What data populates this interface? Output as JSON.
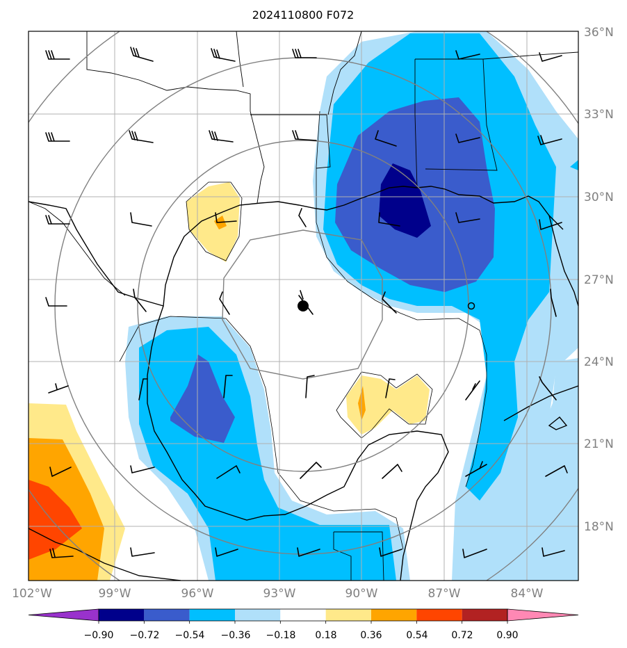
{
  "map": {
    "title": "2024110800 F072",
    "lat_labels": [
      "36°N",
      "33°N",
      "30°N",
      "27°N",
      "24°N",
      "21°N",
      "18°N"
    ],
    "lon_labels": [
      "102°W",
      "99°W",
      "96°W",
      "93°W",
      "90°W",
      "87°W",
      "84°W"
    ],
    "extent": {
      "lon_min": -102,
      "lon_max": -82,
      "lat_min": 16,
      "lat_max": 36
    },
    "storm_center": {
      "lon": -91.9,
      "lat": 26.1
    }
  },
  "colorbar": {
    "levels": [
      -0.9,
      -0.72,
      -0.54,
      -0.36,
      -0.18,
      0.18,
      0.36,
      0.54,
      0.72,
      0.9
    ],
    "labels": [
      "−0.90",
      "−0.72",
      "−0.54",
      "−0.36",
      "−0.18",
      "0.18",
      "0.36",
      "0.54",
      "0.72",
      "0.90"
    ],
    "colors": [
      "#9932cc",
      "#00008b",
      "#3a5ccc",
      "#00bfff",
      "#b0e0fa",
      "#ffffff",
      "#ffe98a",
      "#ffa500",
      "#ff4500",
      "#b22222",
      "#ff88b4"
    ]
  },
  "fill_colors": {
    "neg_090": "#00008b",
    "neg_072": "#3a5ccc",
    "neg_054": "#00bfff",
    "neg_036": "#b0e0fa",
    "pos_018": "#ffe98a",
    "pos_036": "#ffa500",
    "pos_054": "#ff4500"
  }
}
